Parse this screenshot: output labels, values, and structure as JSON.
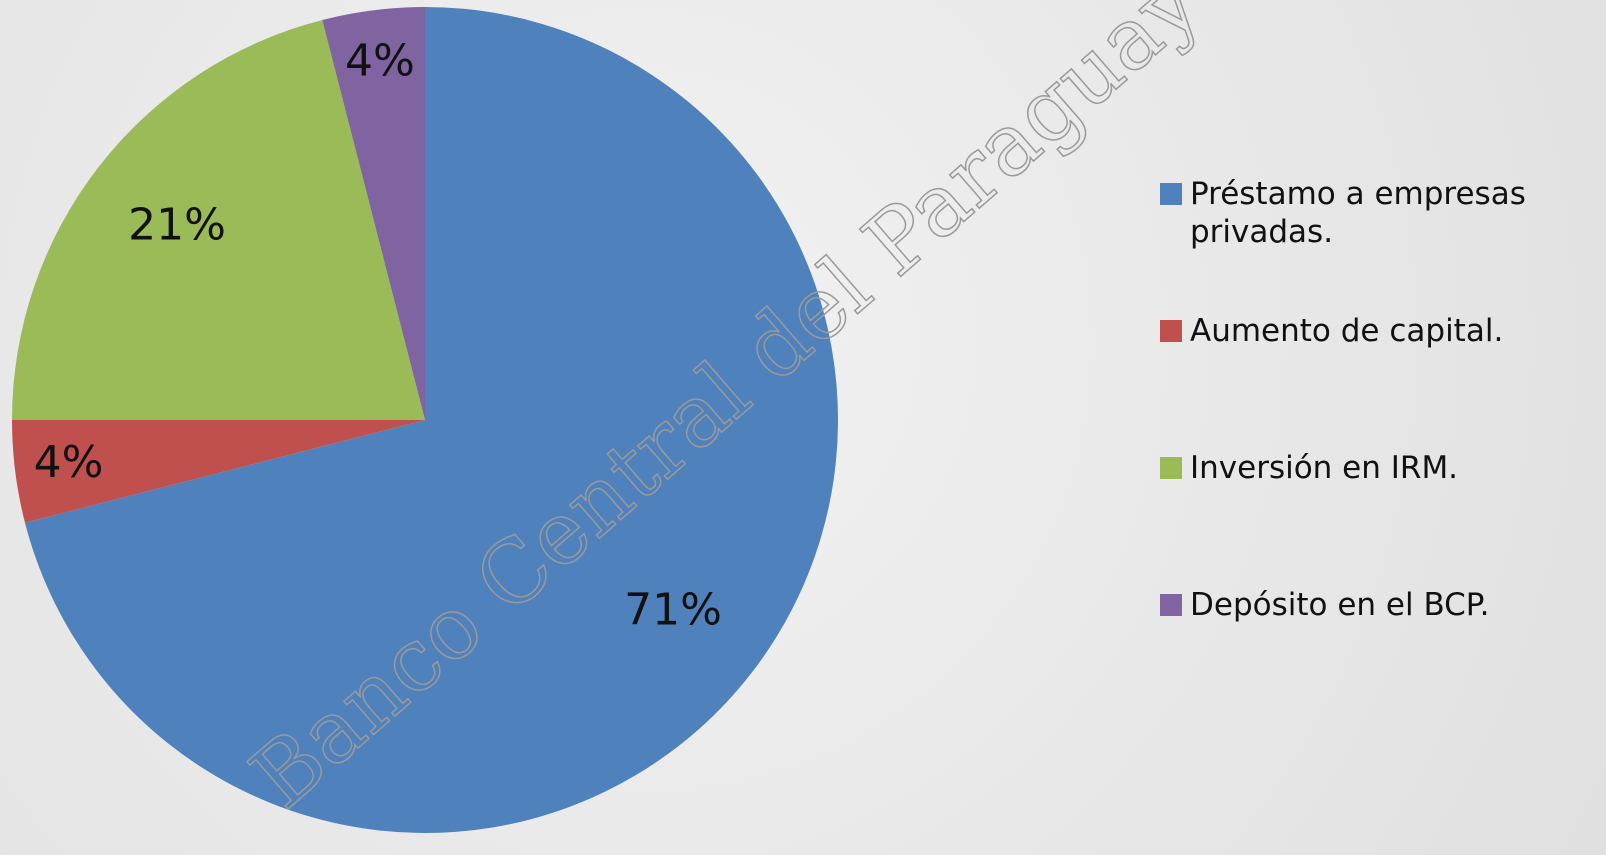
{
  "chart_data": {
    "type": "pie",
    "categories": [
      "Préstamo a empresas privadas.",
      "Aumento de capital.",
      "Inversión en IRM.",
      "Depósito en el BCP."
    ],
    "values": [
      71,
      4,
      21,
      4
    ],
    "value_labels": [
      "71%",
      "4%",
      "21%",
      "4%"
    ],
    "colors": [
      "#4f81bd",
      "#c0504d",
      "#9bbb59",
      "#8064a2"
    ],
    "legend": "right",
    "watermark": "Banco Central del Paraguay"
  }
}
